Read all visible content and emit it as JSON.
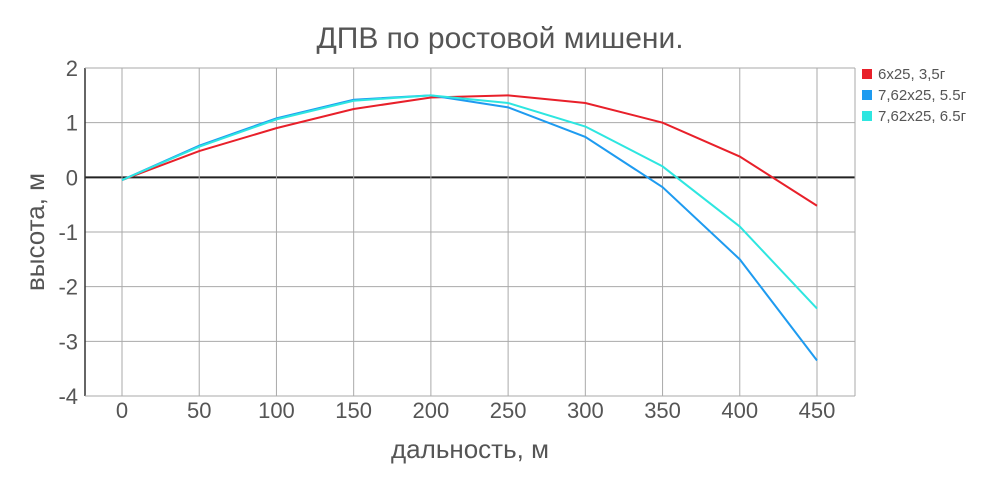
{
  "chart_data": {
    "type": "line",
    "title": "ДПВ по ростовой мишени.",
    "xlabel": "дальность, м",
    "ylabel": "высота, м",
    "x": [
      0,
      50,
      100,
      150,
      200,
      250,
      300,
      350,
      400,
      450
    ],
    "xlim": [
      -25,
      475
    ],
    "ylim": [
      -4,
      2
    ],
    "xticks": [
      0,
      50,
      100,
      150,
      200,
      250,
      300,
      350,
      400,
      450
    ],
    "yticks": [
      2,
      1,
      0,
      -1,
      -2,
      -3,
      -4
    ],
    "grid": true,
    "legend_position": "right",
    "series": [
      {
        "name": "6х25, 3,5г",
        "color": "#e8202a",
        "values": [
          -0.05,
          0.48,
          0.9,
          1.25,
          1.46,
          1.5,
          1.36,
          1.0,
          0.38,
          -0.52
        ]
      },
      {
        "name": "7,62х25, 5.5г",
        "color": "#1e9bf0",
        "values": [
          -0.05,
          0.58,
          1.08,
          1.42,
          1.5,
          1.28,
          0.74,
          -0.18,
          -1.5,
          -3.35
        ]
      },
      {
        "name": "7,62x25, 6.5г",
        "color": "#2ee6e0",
        "values": [
          -0.05,
          0.56,
          1.06,
          1.4,
          1.5,
          1.36,
          0.93,
          0.2,
          -0.9,
          -2.4
        ]
      }
    ]
  }
}
